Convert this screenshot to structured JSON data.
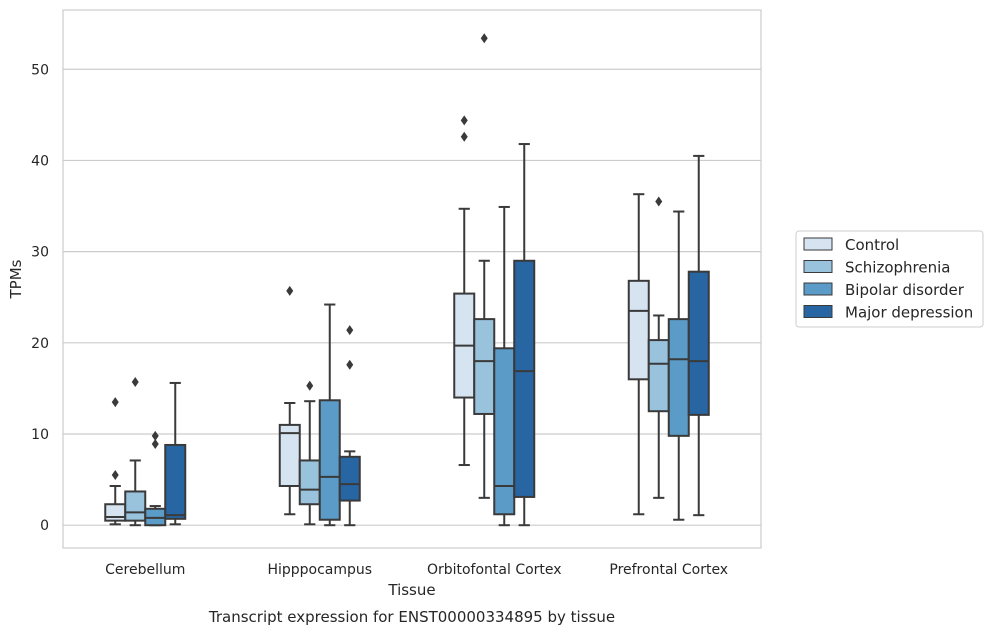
{
  "chart_data": {
    "type": "box",
    "title": "Transcript expression for ENST00000334895 by tissue",
    "xlabel": "Tissue",
    "ylabel": "TPMs",
    "ylim": [
      -2.5,
      56.5
    ],
    "yticks": [
      0,
      10,
      20,
      30,
      40,
      50
    ],
    "grid": "horizontal",
    "legend_position": "right",
    "categories": [
      "Cerebellum",
      "Hipppocampus",
      "Orbitofontal Cortex",
      "Prefrontal Cortex"
    ],
    "series": [
      {
        "name": "Control",
        "color": "#d6e3f1",
        "boxes": [
          {
            "whisker_low": 0.1,
            "q1": 0.5,
            "median": 0.9,
            "q3": 2.3,
            "whisker_high": 4.3,
            "outliers": [
              5.5,
              13.5
            ]
          },
          {
            "whisker_low": 1.2,
            "q1": 4.3,
            "median": 10.1,
            "q3": 11.0,
            "whisker_high": 13.4,
            "outliers": [
              25.7
            ]
          },
          {
            "whisker_low": 6.6,
            "q1": 14.0,
            "median": 19.7,
            "q3": 25.4,
            "whisker_high": 34.7,
            "outliers": [
              42.6,
              44.4
            ]
          },
          {
            "whisker_low": 1.2,
            "q1": 16.0,
            "median": 23.5,
            "q3": 26.8,
            "whisker_high": 36.3,
            "outliers": []
          }
        ]
      },
      {
        "name": "Schizophrenia",
        "color": "#99c2dd",
        "boxes": [
          {
            "whisker_low": 0.0,
            "q1": 0.5,
            "median": 1.4,
            "q3": 3.7,
            "whisker_high": 7.1,
            "outliers": [
              15.7
            ]
          },
          {
            "whisker_low": 0.1,
            "q1": 2.3,
            "median": 3.9,
            "q3": 7.1,
            "whisker_high": 13.6,
            "outliers": [
              15.3
            ]
          },
          {
            "whisker_low": 3.0,
            "q1": 12.2,
            "median": 18.0,
            "q3": 22.6,
            "whisker_high": 29.0,
            "outliers": [
              53.4
            ]
          },
          {
            "whisker_low": 3.0,
            "q1": 12.5,
            "median": 17.7,
            "q3": 20.3,
            "whisker_high": 23.0,
            "outliers": [
              35.5
            ]
          }
        ]
      },
      {
        "name": "Bipolar disorder",
        "color": "#5b9bc7",
        "boxes": [
          {
            "whisker_low": 0.0,
            "q1": 0.0,
            "median": 0.8,
            "q3": 1.8,
            "whisker_high": 2.1,
            "outliers": [
              8.9,
              9.8
            ]
          },
          {
            "whisker_low": 0.0,
            "q1": 0.6,
            "median": 5.3,
            "q3": 13.7,
            "whisker_high": 24.2,
            "outliers": []
          },
          {
            "whisker_low": 0.0,
            "q1": 1.2,
            "median": 4.3,
            "q3": 19.4,
            "whisker_high": 34.9,
            "outliers": []
          },
          {
            "whisker_low": 0.6,
            "q1": 9.8,
            "median": 18.2,
            "q3": 22.6,
            "whisker_high": 34.4,
            "outliers": []
          }
        ]
      },
      {
        "name": "Major depression",
        "color": "#2765a3",
        "boxes": [
          {
            "whisker_low": 0.1,
            "q1": 0.7,
            "median": 1.1,
            "q3": 8.8,
            "whisker_high": 15.6,
            "outliers": []
          },
          {
            "whisker_low": 0.0,
            "q1": 2.7,
            "median": 4.5,
            "q3": 7.5,
            "whisker_high": 8.1,
            "outliers": [
              17.6,
              21.4
            ]
          },
          {
            "whisker_low": 0.0,
            "q1": 3.1,
            "median": 16.9,
            "q3": 29.0,
            "whisker_high": 41.8,
            "outliers": []
          },
          {
            "whisker_low": 1.1,
            "q1": 12.1,
            "median": 18.0,
            "q3": 27.8,
            "whisker_high": 40.5,
            "outliers": []
          }
        ]
      }
    ]
  }
}
